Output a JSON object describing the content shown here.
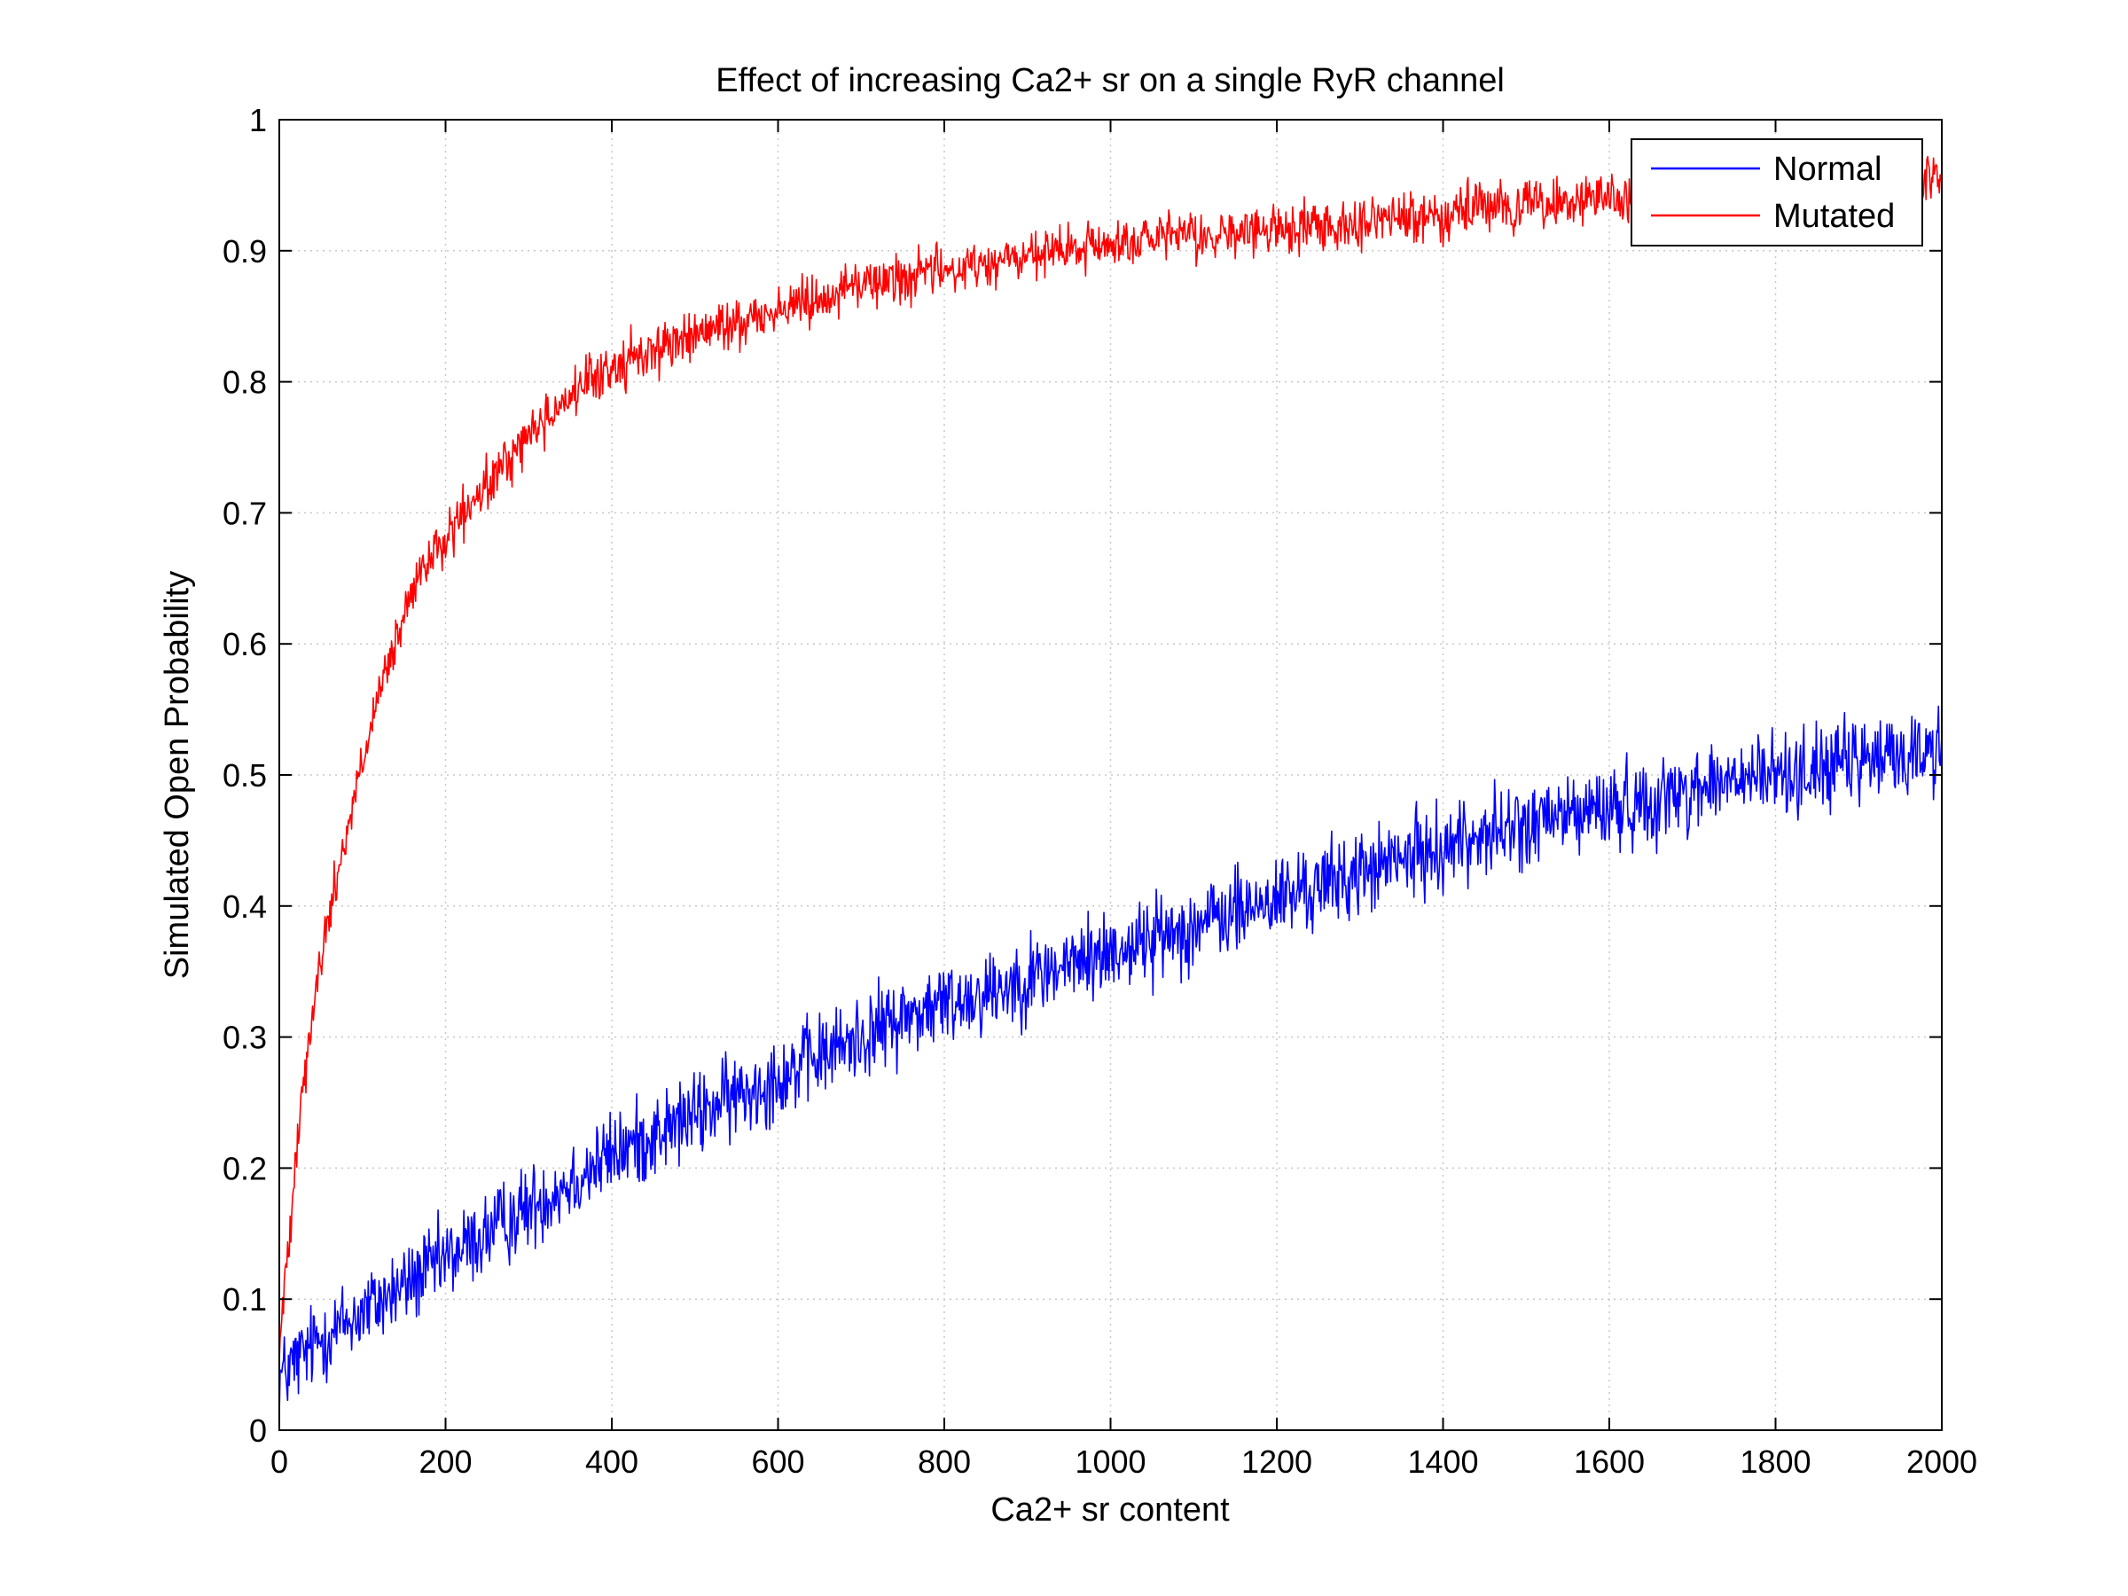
{
  "chart_data": {
    "type": "line",
    "title": "Effect of increasing Ca2+ sr on a single RyR channel",
    "xlabel": "Ca2+ sr content",
    "ylabel": "Simulated Open Probability",
    "xlim": [
      0,
      2000
    ],
    "ylim": [
      0,
      1
    ],
    "xticks": [
      0,
      200,
      400,
      600,
      800,
      1000,
      1200,
      1400,
      1600,
      1800,
      2000
    ],
    "xtick_labels": [
      "0",
      "200",
      "400",
      "600",
      "800",
      "1000",
      "1200",
      "1400",
      "1600",
      "1800",
      "2000"
    ],
    "yticks": [
      0,
      0.1,
      0.2,
      0.3,
      0.4,
      0.5,
      0.6,
      0.7,
      0.8,
      0.9,
      1
    ],
    "ytick_labels": [
      "0",
      "0.1",
      "0.2",
      "0.3",
      "0.4",
      "0.5",
      "0.6",
      "0.7",
      "0.8",
      "0.9",
      "1"
    ],
    "grid": true,
    "legend_position": "top-right",
    "series": [
      {
        "name": "Normal",
        "color": "#0000ff",
        "x": [
          0,
          50,
          100,
          150,
          200,
          250,
          300,
          350,
          400,
          450,
          500,
          550,
          600,
          650,
          700,
          750,
          800,
          850,
          900,
          950,
          1000,
          1050,
          1100,
          1150,
          1200,
          1250,
          1300,
          1350,
          1400,
          1450,
          1500,
          1550,
          1600,
          1650,
          1700,
          1750,
          1800,
          1850,
          1900,
          1950,
          2000
        ],
        "y": [
          0.04,
          0.07,
          0.09,
          0.11,
          0.13,
          0.15,
          0.17,
          0.19,
          0.21,
          0.225,
          0.24,
          0.255,
          0.27,
          0.285,
          0.3,
          0.315,
          0.325,
          0.335,
          0.345,
          0.355,
          0.365,
          0.375,
          0.385,
          0.395,
          0.405,
          0.415,
          0.425,
          0.435,
          0.445,
          0.455,
          0.46,
          0.47,
          0.475,
          0.48,
          0.49,
          0.495,
          0.5,
          0.505,
          0.51,
          0.515,
          0.52
        ]
      },
      {
        "name": "Mutated",
        "color": "#ff0000",
        "x": [
          0,
          25,
          50,
          75,
          100,
          125,
          150,
          175,
          200,
          250,
          300,
          350,
          400,
          450,
          500,
          550,
          600,
          650,
          700,
          750,
          800,
          850,
          900,
          950,
          1000,
          1050,
          1100,
          1150,
          1200,
          1250,
          1300,
          1350,
          1400,
          1450,
          1500,
          1550,
          1600,
          1650,
          1700,
          1750,
          1800,
          1850,
          1900,
          1950,
          2000
        ],
        "y": [
          0.06,
          0.25,
          0.36,
          0.44,
          0.51,
          0.57,
          0.62,
          0.66,
          0.68,
          0.72,
          0.76,
          0.79,
          0.81,
          0.825,
          0.835,
          0.845,
          0.855,
          0.865,
          0.875,
          0.88,
          0.885,
          0.89,
          0.895,
          0.9,
          0.905,
          0.908,
          0.91,
          0.913,
          0.916,
          0.92,
          0.922,
          0.925,
          0.928,
          0.932,
          0.935,
          0.937,
          0.94,
          0.942,
          0.944,
          0.946,
          0.948,
          0.95,
          0.952,
          0.955,
          0.958
        ]
      }
    ]
  }
}
